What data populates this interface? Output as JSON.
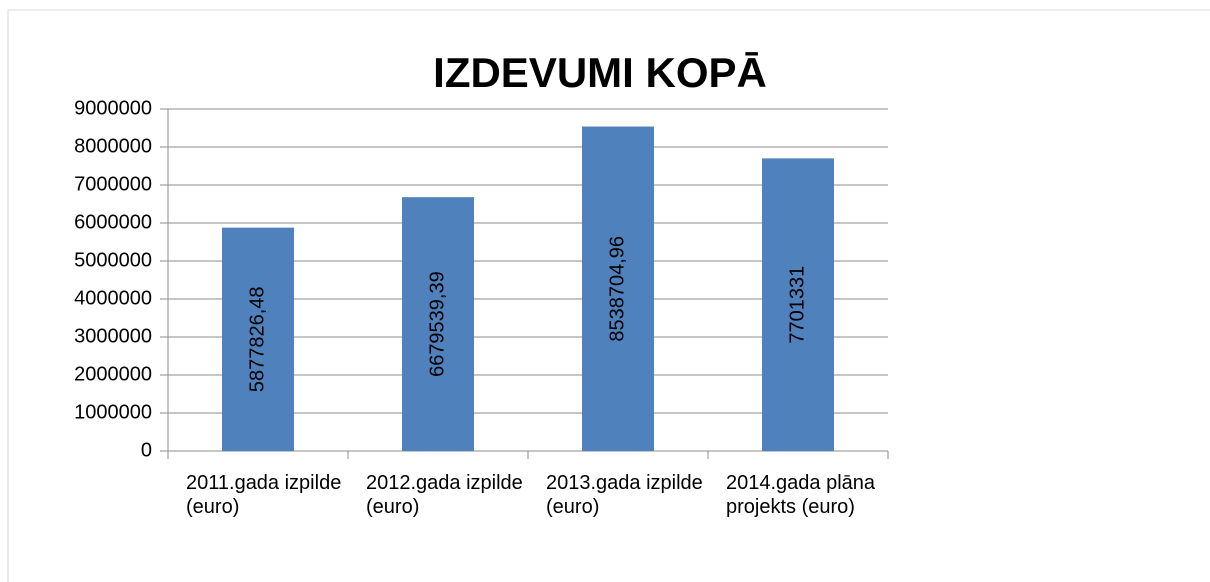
{
  "chart_data": {
    "type": "bar",
    "title": "IZDEVUMI KOPĀ",
    "categories": [
      "2011.gada izpilde (euro)",
      "2012.gada izpilde  (euro)",
      "2013.gada izpilde (euro)",
      "2014.gada plāna projekts (euro)"
    ],
    "values": [
      5877826.48,
      6679539.39,
      8538704.96,
      7701331
    ],
    "value_labels": [
      "5877826,48",
      "6679539,39",
      "8538704,96",
      "7701331"
    ],
    "color": "#4f81bd",
    "ylim": [
      0,
      9000000
    ],
    "yticks": [
      0,
      1000000,
      2000000,
      3000000,
      4000000,
      5000000,
      6000000,
      7000000,
      8000000,
      9000000
    ],
    "grid": true
  }
}
